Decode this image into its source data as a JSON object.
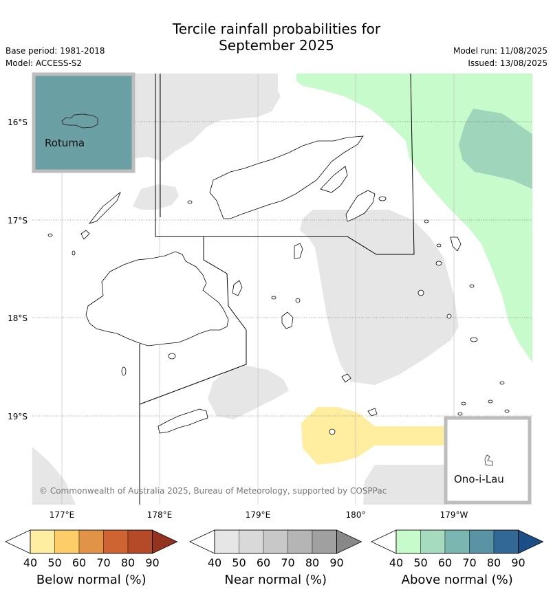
{
  "title": {
    "line1": "Tercile rainfall probabilities for",
    "line2": "September 2025"
  },
  "meta": {
    "base_period": "Base period: 1981-2018",
    "model": "Model: ACCESS-S2",
    "model_run": "Model run: 11/08/2025",
    "issued": "Issued: 13/08/2025"
  },
  "map": {
    "lat_labels": [
      "16°S",
      "17°S",
      "18°S",
      "19°S"
    ],
    "lon_labels": [
      "177°E",
      "178°E",
      "179°E",
      "180°",
      "179°W"
    ],
    "copyright": "© Commonwealth of Australia 2025, Bureau of Meteorology, supported by COSPPac",
    "insets": {
      "rotuma": "Rotuma",
      "ono_i_lau": "Ono-i-Lau"
    },
    "colors": {
      "near_normal_fill": "#e6e6e6",
      "above_40": "#c8fbcb",
      "above_50": "#9ed5bb",
      "below_40": "#ffeea0",
      "rotuma_bg": "#6a9fa4",
      "inset_border": "#bdbdbd"
    }
  },
  "legends": [
    {
      "label": "Below normal (%)",
      "ticks": [
        "40",
        "50",
        "60",
        "70",
        "80",
        "90"
      ],
      "colors": [
        "#fdeea2",
        "#fdcd6a",
        "#e19347",
        "#ce6432",
        "#b44a28",
        "#93321f"
      ]
    },
    {
      "label": "Near normal (%)",
      "ticks": [
        "40",
        "50",
        "60",
        "70",
        "80",
        "90"
      ],
      "colors": [
        "#e6e6e6",
        "#d9d9d9",
        "#c8c8c8",
        "#b5b5b5",
        "#a0a0a0",
        "#888888"
      ]
    },
    {
      "label": "Above normal (%)",
      "ticks": [
        "40",
        "50",
        "60",
        "70",
        "80",
        "90"
      ],
      "colors": [
        "#c8fbcb",
        "#a6dbbf",
        "#7cb6b0",
        "#5a93a3",
        "#326896",
        "#1b4e84"
      ]
    }
  ]
}
